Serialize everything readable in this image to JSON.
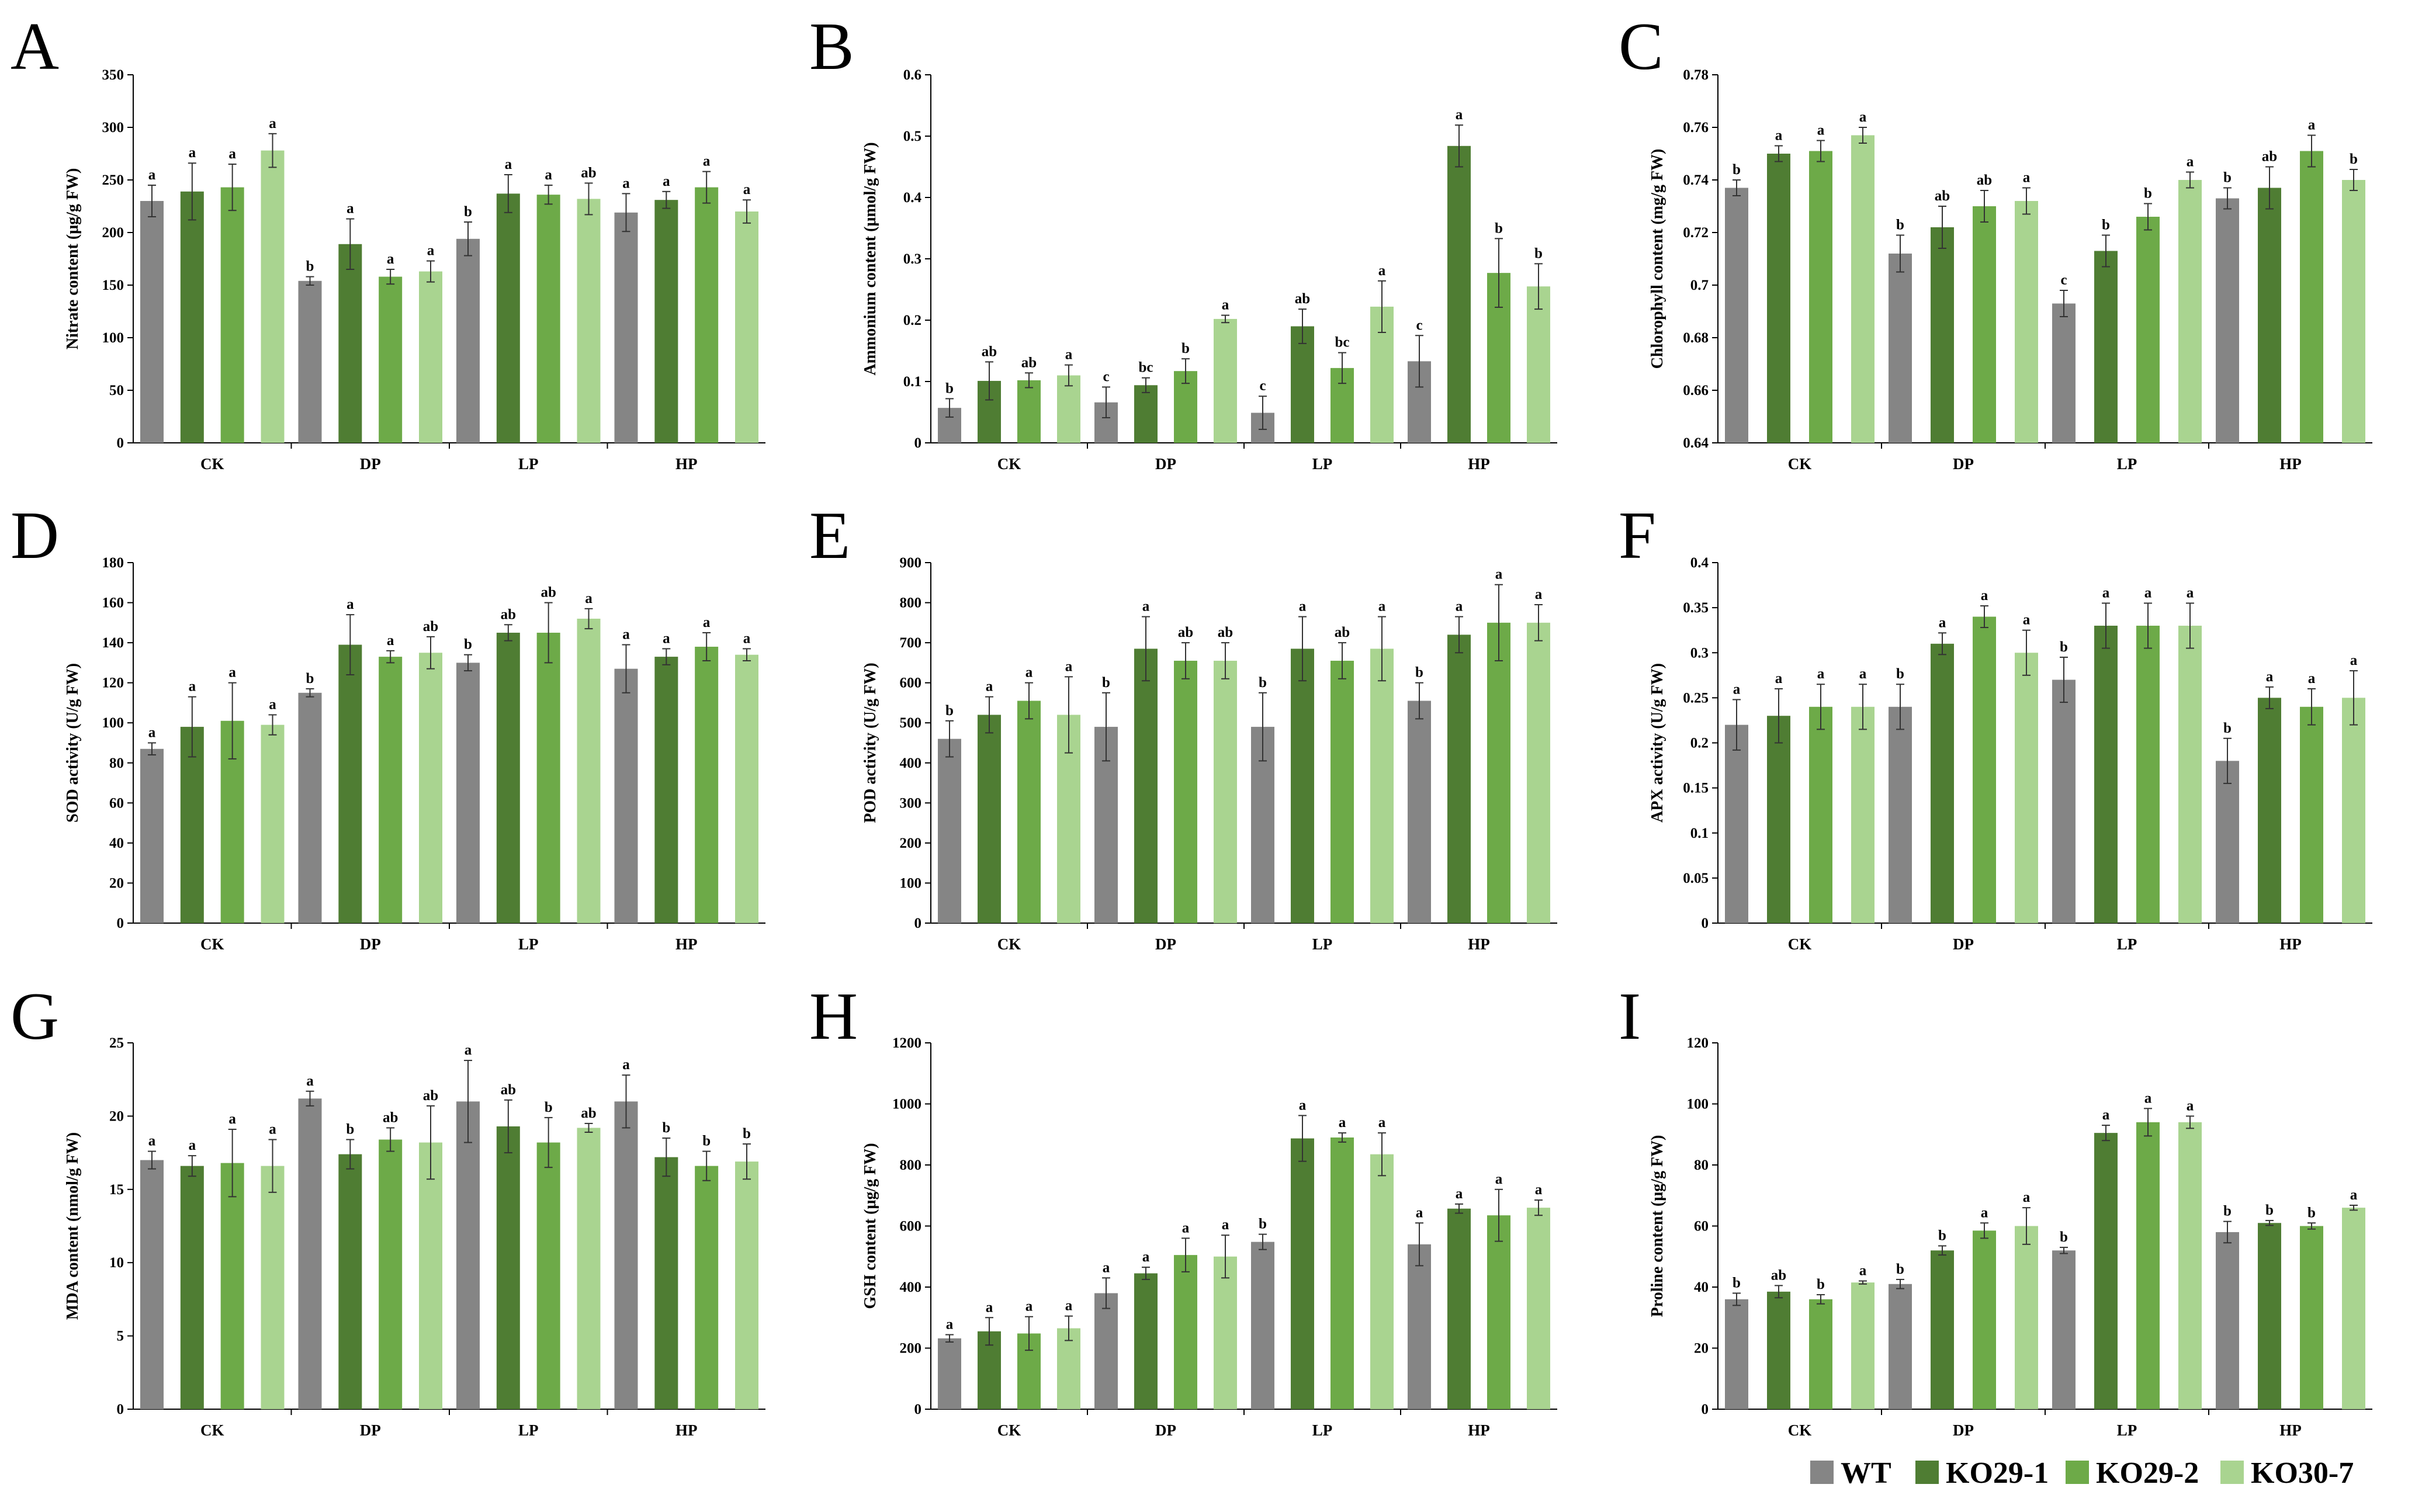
{
  "figure": {
    "series_names": [
      "WT",
      "KO29-1",
      "KO29-2",
      "KO30-7"
    ],
    "series_colors": [
      "#858585",
      "#4f7d33",
      "#6daa48",
      "#a9d490"
    ],
    "categories": [
      "CK",
      "DP",
      "LP",
      "HP"
    ]
  },
  "chart_data": [
    {
      "type": "bar",
      "letter": "A",
      "ylabel": "Nitrate content (μg/g FW)",
      "ylim": [
        0,
        350
      ],
      "yticks": [
        0,
        50,
        100,
        150,
        200,
        250,
        300,
        350
      ],
      "tick_labels": [
        "0",
        "50",
        "100",
        "150",
        "200",
        "250",
        "300",
        "350"
      ],
      "categories": [
        "CK",
        "DP",
        "LP",
        "HP"
      ],
      "series": [
        {
          "name": "WT",
          "values": [
            230,
            154,
            194,
            219
          ],
          "errors": [
            15,
            4,
            16,
            18
          ],
          "letters": [
            "a",
            "b",
            "b",
            "a"
          ]
        },
        {
          "name": "KO29-1",
          "values": [
            239,
            189,
            237,
            231
          ],
          "errors": [
            27,
            24,
            18,
            8
          ],
          "letters": [
            "a",
            "a",
            "a",
            "a"
          ]
        },
        {
          "name": "KO29-2",
          "values": [
            243,
            158,
            236,
            243
          ],
          "errors": [
            22,
            7,
            9,
            15
          ],
          "letters": [
            "a",
            "a",
            "a",
            "a"
          ]
        },
        {
          "name": "KO30-7",
          "values": [
            278,
            163,
            232,
            220
          ],
          "errors": [
            16,
            10,
            15,
            11
          ],
          "letters": [
            "a",
            "a",
            "ab",
            "a"
          ]
        }
      ]
    },
    {
      "type": "bar",
      "letter": "B",
      "ylabel": "Ammonium content (μmol/g FW)",
      "ylim": [
        0,
        0.6
      ],
      "yticks": [
        0,
        0.1,
        0.2,
        0.3,
        0.4,
        0.5,
        0.6
      ],
      "tick_labels": [
        "0",
        "0.1",
        "0.2",
        "0.3",
        "0.4",
        "0.5",
        "0.6"
      ],
      "categories": [
        "CK",
        "DP",
        "LP",
        "HP"
      ],
      "series": [
        {
          "name": "WT",
          "values": [
            0.057,
            0.066,
            0.049,
            0.133
          ],
          "errors": [
            0.015,
            0.025,
            0.027,
            0.042
          ],
          "letters": [
            "b",
            "c",
            "c",
            "c"
          ]
        },
        {
          "name": "KO29-1",
          "values": [
            0.101,
            0.094,
            0.19,
            0.484
          ],
          "errors": [
            0.031,
            0.012,
            0.028,
            0.034
          ],
          "letters": [
            "ab",
            "bc",
            "ab",
            "a"
          ]
        },
        {
          "name": "KO29-2",
          "values": [
            0.102,
            0.117,
            0.122,
            0.277
          ],
          "errors": [
            0.012,
            0.02,
            0.025,
            0.056
          ],
          "letters": [
            "ab",
            "b",
            "bc",
            "b"
          ]
        },
        {
          "name": "KO30-7",
          "values": [
            0.11,
            0.202,
            0.222,
            0.255
          ],
          "errors": [
            0.017,
            0.006,
            0.042,
            0.037
          ],
          "letters": [
            "a",
            "a",
            "a",
            "b"
          ]
        }
      ]
    },
    {
      "type": "bar",
      "letter": "C",
      "ylabel": "Chlorophyll content (mg/g FW)",
      "ylim": [
        0.64,
        0.78
      ],
      "yticks": [
        0.64,
        0.66,
        0.68,
        0.7,
        0.72,
        0.74,
        0.76,
        0.78
      ],
      "tick_labels": [
        "0.64",
        "0.66",
        "0.68",
        "0.7",
        "0.72",
        "0.74",
        "0.76",
        "0.78"
      ],
      "categories": [
        "CK",
        "DP",
        "LP",
        "HP"
      ],
      "series": [
        {
          "name": "WT",
          "values": [
            0.737,
            0.712,
            0.693,
            0.733
          ],
          "errors": [
            0.003,
            0.007,
            0.005,
            0.004
          ],
          "letters": [
            "b",
            "b",
            "c",
            "b"
          ]
        },
        {
          "name": "KO29-1",
          "values": [
            0.75,
            0.722,
            0.713,
            0.737
          ],
          "errors": [
            0.003,
            0.008,
            0.006,
            0.008
          ],
          "letters": [
            "a",
            "ab",
            "b",
            "ab"
          ]
        },
        {
          "name": "KO29-2",
          "values": [
            0.751,
            0.73,
            0.726,
            0.751
          ],
          "errors": [
            0.004,
            0.006,
            0.005,
            0.006
          ],
          "letters": [
            "a",
            "ab",
            "b",
            "a"
          ]
        },
        {
          "name": "KO30-7",
          "values": [
            0.757,
            0.732,
            0.74,
            0.74
          ],
          "errors": [
            0.003,
            0.005,
            0.003,
            0.004
          ],
          "letters": [
            "a",
            "a",
            "a",
            "b"
          ]
        }
      ]
    },
    {
      "type": "bar",
      "letter": "D",
      "ylabel": "SOD activity (U/g FW)",
      "ylim": [
        0,
        180
      ],
      "yticks": [
        0,
        20,
        40,
        60,
        80,
        100,
        120,
        140,
        160,
        180
      ],
      "tick_labels": [
        "0",
        "20",
        "40",
        "60",
        "80",
        "100",
        "120",
        "140",
        "160",
        "180"
      ],
      "categories": [
        "CK",
        "DP",
        "LP",
        "HP"
      ],
      "series": [
        {
          "name": "WT",
          "values": [
            87,
            115,
            130,
            127
          ],
          "errors": [
            3,
            2,
            4,
            12
          ],
          "letters": [
            "a",
            "b",
            "b",
            "a"
          ]
        },
        {
          "name": "KO29-1",
          "values": [
            98,
            139,
            145,
            133
          ],
          "errors": [
            15,
            15,
            4,
            4
          ],
          "letters": [
            "a",
            "a",
            "ab",
            "a"
          ]
        },
        {
          "name": "KO29-2",
          "values": [
            101,
            133,
            145,
            138
          ],
          "errors": [
            19,
            3,
            15,
            7
          ],
          "letters": [
            "a",
            "a",
            "ab",
            "a"
          ]
        },
        {
          "name": "KO30-7",
          "values": [
            99,
            135,
            152,
            134
          ],
          "errors": [
            5,
            8,
            5,
            3
          ],
          "letters": [
            "a",
            "ab",
            "a",
            "a"
          ]
        }
      ]
    },
    {
      "type": "bar",
      "letter": "E",
      "ylabel": "POD activity (U/g FW)",
      "ylim": [
        0,
        900
      ],
      "yticks": [
        0,
        100,
        200,
        300,
        400,
        500,
        600,
        700,
        800,
        900
      ],
      "tick_labels": [
        "0",
        "100",
        "200",
        "300",
        "400",
        "500",
        "600",
        "700",
        "800",
        "900"
      ],
      "categories": [
        "CK",
        "DP",
        "LP",
        "HP"
      ],
      "series": [
        {
          "name": "WT",
          "values": [
            460,
            490,
            490,
            555
          ],
          "errors": [
            45,
            85,
            85,
            45
          ],
          "letters": [
            "b",
            "b",
            "b",
            "b"
          ]
        },
        {
          "name": "KO29-1",
          "values": [
            520,
            685,
            685,
            720
          ],
          "errors": [
            45,
            80,
            80,
            45
          ],
          "letters": [
            "a",
            "a",
            "a",
            "a"
          ]
        },
        {
          "name": "KO29-2",
          "values": [
            555,
            655,
            655,
            750
          ],
          "errors": [
            45,
            45,
            45,
            95
          ],
          "letters": [
            "a",
            "ab",
            "ab",
            "a"
          ]
        },
        {
          "name": "KO30-7",
          "values": [
            520,
            655,
            685,
            750
          ],
          "errors": [
            95,
            45,
            80,
            45
          ],
          "letters": [
            "a",
            "ab",
            "a",
            "a"
          ]
        }
      ]
    },
    {
      "type": "bar",
      "letter": "F",
      "ylabel": "APX activity (U/g FW)",
      "ylim": [
        0,
        0.4
      ],
      "yticks": [
        0,
        0.05,
        0.1,
        0.15,
        0.2,
        0.25,
        0.3,
        0.35,
        0.4
      ],
      "tick_labels": [
        "0",
        "0.05",
        "0.1",
        "0.15",
        "0.2",
        "0.25",
        "0.3",
        "0.35",
        "0.4"
      ],
      "categories": [
        "CK",
        "DP",
        "LP",
        "HP"
      ],
      "series": [
        {
          "name": "WT",
          "values": [
            0.22,
            0.24,
            0.27,
            0.18
          ],
          "errors": [
            0.028,
            0.025,
            0.025,
            0.025
          ],
          "letters": [
            "a",
            "b",
            "b",
            "b"
          ]
        },
        {
          "name": "KO29-1",
          "values": [
            0.23,
            0.31,
            0.33,
            0.25
          ],
          "errors": [
            0.03,
            0.012,
            0.025,
            0.012
          ],
          "letters": [
            "a",
            "a",
            "a",
            "a"
          ]
        },
        {
          "name": "KO29-2",
          "values": [
            0.24,
            0.34,
            0.33,
            0.24
          ],
          "errors": [
            0.025,
            0.012,
            0.025,
            0.02
          ],
          "letters": [
            "a",
            "a",
            "a",
            "a"
          ]
        },
        {
          "name": "KO30-7",
          "values": [
            0.24,
            0.3,
            0.33,
            0.25
          ],
          "errors": [
            0.025,
            0.025,
            0.025,
            0.03
          ],
          "letters": [
            "a",
            "a",
            "a",
            "a"
          ]
        }
      ]
    },
    {
      "type": "bar",
      "letter": "G",
      "ylabel": "MDA content (nmol/g FW)",
      "ylim": [
        0,
        25
      ],
      "yticks": [
        0,
        5,
        10,
        15,
        20,
        25
      ],
      "tick_labels": [
        "0",
        "5",
        "10",
        "15",
        "20",
        "25"
      ],
      "categories": [
        "CK",
        "DP",
        "LP",
        "HP"
      ],
      "series": [
        {
          "name": "WT",
          "values": [
            17,
            21.2,
            21,
            21
          ],
          "errors": [
            0.6,
            0.5,
            2.8,
            1.8
          ],
          "letters": [
            "a",
            "a",
            "a",
            "a"
          ]
        },
        {
          "name": "KO29-1",
          "values": [
            16.6,
            17.4,
            19.3,
            17.2
          ],
          "errors": [
            0.7,
            1,
            1.8,
            1.3
          ],
          "letters": [
            "a",
            "b",
            "ab",
            "b"
          ]
        },
        {
          "name": "KO29-2",
          "values": [
            16.8,
            18.4,
            18.2,
            16.6
          ],
          "errors": [
            2.3,
            0.8,
            1.7,
            1
          ],
          "letters": [
            "a",
            "ab",
            "b",
            "b"
          ]
        },
        {
          "name": "KO30-7",
          "values": [
            16.6,
            18.2,
            19.2,
            16.9
          ],
          "errors": [
            1.8,
            2.5,
            0.3,
            1.2
          ],
          "letters": [
            "a",
            "ab",
            "ab",
            "b"
          ]
        }
      ]
    },
    {
      "type": "bar",
      "letter": "H",
      "ylabel": "GSH content (μg/g FW)",
      "ylim": [
        0,
        1200
      ],
      "yticks": [
        0,
        200,
        400,
        600,
        800,
        1000,
        1200
      ],
      "tick_labels": [
        "0",
        "200",
        "400",
        "600",
        "800",
        "1000",
        "1200"
      ],
      "categories": [
        "CK",
        "DP",
        "LP",
        "HP"
      ],
      "series": [
        {
          "name": "WT",
          "values": [
            232,
            380,
            548,
            540
          ],
          "errors": [
            12,
            50,
            25,
            70
          ],
          "letters": [
            "a",
            "a",
            "b",
            "a"
          ]
        },
        {
          "name": "KO29-1",
          "values": [
            255,
            445,
            887,
            657
          ],
          "errors": [
            45,
            20,
            75,
            15
          ],
          "letters": [
            "a",
            "a",
            "a",
            "a"
          ]
        },
        {
          "name": "KO29-2",
          "values": [
            248,
            505,
            890,
            635
          ],
          "errors": [
            55,
            55,
            15,
            85
          ],
          "letters": [
            "a",
            "a",
            "a",
            "a"
          ]
        },
        {
          "name": "KO30-7",
          "values": [
            265,
            500,
            835,
            660
          ],
          "errors": [
            40,
            70,
            70,
            25
          ],
          "letters": [
            "a",
            "a",
            "a",
            "a"
          ]
        }
      ]
    },
    {
      "type": "bar",
      "letter": "I",
      "ylabel": "Proline content (μg/g FW)",
      "ylim": [
        0,
        120
      ],
      "yticks": [
        0,
        20,
        40,
        60,
        80,
        100,
        120
      ],
      "tick_labels": [
        "0",
        "20",
        "40",
        "60",
        "80",
        "100",
        "120"
      ],
      "categories": [
        "CK",
        "DP",
        "LP",
        "HP"
      ],
      "series": [
        {
          "name": "WT",
          "values": [
            36,
            41,
            52,
            58
          ],
          "errors": [
            2,
            1.5,
            1,
            3.5
          ],
          "letters": [
            "b",
            "b",
            "b",
            "b"
          ]
        },
        {
          "name": "KO29-1",
          "values": [
            38.5,
            52,
            90.5,
            61
          ],
          "errors": [
            2,
            1.5,
            2.5,
            0.8
          ],
          "letters": [
            "ab",
            "b",
            "a",
            "b"
          ]
        },
        {
          "name": "KO29-2",
          "values": [
            36,
            58.5,
            94,
            60
          ],
          "errors": [
            1.5,
            2.5,
            4.5,
            1
          ],
          "letters": [
            "b",
            "a",
            "a",
            "b"
          ]
        },
        {
          "name": "KO30-7",
          "values": [
            41.5,
            60,
            94,
            66
          ],
          "errors": [
            0.5,
            6,
            2,
            0.8
          ],
          "letters": [
            "a",
            "a",
            "a",
            "a"
          ]
        }
      ]
    }
  ]
}
